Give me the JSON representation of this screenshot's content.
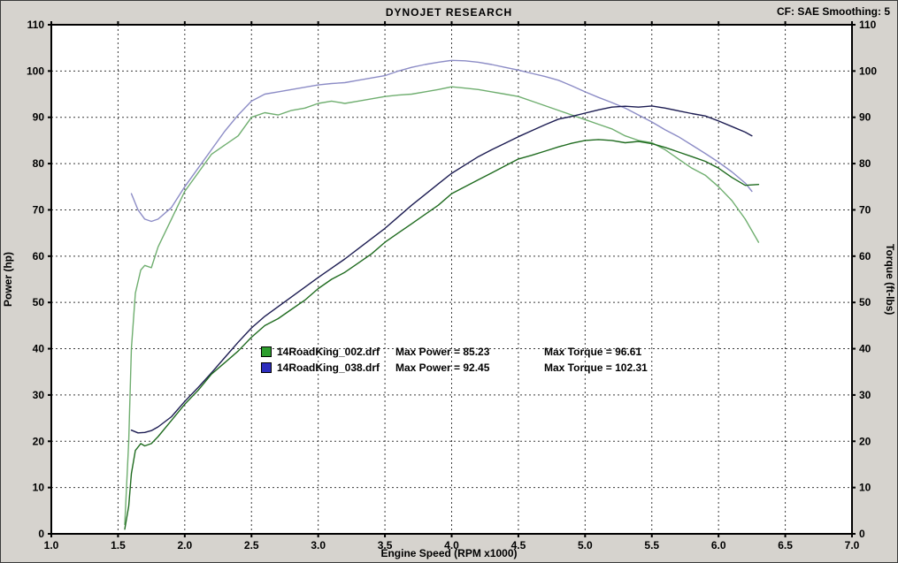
{
  "header": {
    "title": "DYNOJET RESEARCH",
    "settings": "CF: SAE  Smoothing: 5"
  },
  "chart_data": {
    "type": "line",
    "title": "DYNOJET RESEARCH",
    "xlabel": "Engine Speed (RPM x1000)",
    "ylabel_left": "Power (hp)",
    "ylabel_right": "Torque (ft-lbs)",
    "xlim": [
      1.0,
      7.0
    ],
    "ylim": [
      0,
      110
    ],
    "x_ticks": [
      1.0,
      1.5,
      2.0,
      2.5,
      3.0,
      3.5,
      4.0,
      4.5,
      5.0,
      5.5,
      6.0,
      6.5,
      7.0
    ],
    "y_ticks": [
      0,
      10,
      20,
      30,
      40,
      50,
      60,
      70,
      80,
      90,
      100,
      110
    ],
    "grid": "dashed",
    "grid_color": "#3a3a3a",
    "plot_background": "#ffffff",
    "series": [
      {
        "name": "14RoadKing_038.drf Torque",
        "color": "#8c8cc6",
        "axis": "torque",
        "x": [
          1.6,
          1.65,
          1.7,
          1.75,
          1.8,
          1.9,
          2.0,
          2.1,
          2.2,
          2.3,
          2.4,
          2.5,
          2.6,
          2.7,
          2.8,
          2.9,
          3.0,
          3.1,
          3.2,
          3.3,
          3.4,
          3.5,
          3.6,
          3.7,
          3.8,
          3.9,
          4.0,
          4.1,
          4.2,
          4.3,
          4.4,
          4.5,
          4.6,
          4.7,
          4.8,
          4.9,
          5.0,
          5.1,
          5.2,
          5.3,
          5.4,
          5.5,
          5.6,
          5.7,
          5.8,
          5.9,
          6.0,
          6.1,
          6.2,
          6.25
        ],
        "y": [
          73.5,
          70,
          68,
          67.5,
          68,
          70.5,
          75,
          79,
          83,
          87,
          90.5,
          93.5,
          95,
          95.5,
          96,
          96.5,
          97,
          97.3,
          97.5,
          98,
          98.5,
          99,
          100,
          100.8,
          101.4,
          101.9,
          102.3,
          102.2,
          101.9,
          101.4,
          100.8,
          100.2,
          99.5,
          98.8,
          98,
          96.8,
          95.5,
          94.3,
          93.2,
          92,
          90.5,
          89,
          87.3,
          85.8,
          84,
          82.2,
          80.3,
          78.2,
          75.8,
          74
        ]
      },
      {
        "name": "14RoadKing_002.drf Torque",
        "color": "#6fae6f",
        "axis": "torque",
        "x": [
          1.55,
          1.58,
          1.6,
          1.63,
          1.67,
          1.7,
          1.75,
          1.8,
          1.9,
          2.0,
          2.1,
          2.2,
          2.3,
          2.4,
          2.5,
          2.6,
          2.7,
          2.8,
          2.9,
          3.0,
          3.1,
          3.2,
          3.3,
          3.4,
          3.5,
          3.6,
          3.7,
          3.8,
          3.9,
          4.0,
          4.1,
          4.2,
          4.3,
          4.4,
          4.5,
          4.6,
          4.7,
          4.8,
          4.9,
          5.0,
          5.1,
          5.2,
          5.3,
          5.4,
          5.5,
          5.6,
          5.7,
          5.8,
          5.9,
          6.0,
          6.1,
          6.2,
          6.3
        ],
        "y": [
          2,
          20,
          40,
          52,
          57,
          58,
          57.5,
          62,
          68,
          74,
          78,
          82,
          84,
          86,
          90,
          91,
          90.5,
          91.5,
          92,
          93,
          93.5,
          93,
          93.5,
          94,
          94.5,
          94.8,
          95,
          95.5,
          96,
          96.6,
          96.3,
          96,
          95.5,
          95,
          94.5,
          93.5,
          92.5,
          91.5,
          90.5,
          89.5,
          88.5,
          87.5,
          86,
          85,
          84.5,
          83,
          81,
          79,
          77.5,
          75,
          72,
          68,
          63
        ]
      },
      {
        "name": "14RoadKing_038.drf Power",
        "color": "#1c1c52",
        "axis": "power",
        "x": [
          1.6,
          1.65,
          1.7,
          1.75,
          1.8,
          1.9,
          2.0,
          2.1,
          2.2,
          2.3,
          2.4,
          2.5,
          2.6,
          2.7,
          2.8,
          2.9,
          3.0,
          3.1,
          3.2,
          3.3,
          3.4,
          3.5,
          3.6,
          3.7,
          3.8,
          3.9,
          4.0,
          4.1,
          4.2,
          4.3,
          4.4,
          4.5,
          4.6,
          4.7,
          4.8,
          4.9,
          5.0,
          5.1,
          5.2,
          5.3,
          5.4,
          5.5,
          5.6,
          5.7,
          5.8,
          5.9,
          6.0,
          6.1,
          6.2,
          6.25
        ],
        "y": [
          22.4,
          21.8,
          21.9,
          22.3,
          23.1,
          25.3,
          28.6,
          31.6,
          34.8,
          38.1,
          41.4,
          44.5,
          47,
          49.1,
          51.2,
          53.3,
          55.4,
          57.4,
          59.4,
          61.6,
          63.8,
          66,
          68.5,
          71,
          73.3,
          75.6,
          77.9,
          79.7,
          81.5,
          83,
          84.4,
          85.8,
          87.1,
          88.4,
          89.6,
          90.2,
          90.9,
          91.6,
          92.2,
          92.4,
          92.2,
          92.45,
          92,
          91.4,
          90.8,
          90.3,
          89.2,
          88,
          86.8,
          86
        ]
      },
      {
        "name": "14RoadKing_002.drf Power",
        "color": "#1f6b1f",
        "axis": "power",
        "x": [
          1.55,
          1.58,
          1.6,
          1.63,
          1.67,
          1.7,
          1.75,
          1.8,
          1.9,
          2.0,
          2.1,
          2.2,
          2.3,
          2.4,
          2.5,
          2.6,
          2.7,
          2.8,
          2.9,
          3.0,
          3.1,
          3.2,
          3.3,
          3.4,
          3.5,
          3.6,
          3.7,
          3.8,
          3.9,
          4.0,
          4.1,
          4.2,
          4.3,
          4.4,
          4.5,
          4.6,
          4.7,
          4.8,
          4.9,
          5.0,
          5.1,
          5.2,
          5.3,
          5.4,
          5.5,
          5.6,
          5.7,
          5.8,
          5.9,
          6.0,
          6.1,
          6.2,
          6.3
        ],
        "y": [
          1,
          6,
          13,
          18,
          19.5,
          19,
          19.5,
          21,
          24.5,
          28,
          31,
          34.5,
          37,
          39.5,
          42.5,
          45,
          46.5,
          48.5,
          50.5,
          53,
          55,
          56.5,
          58.5,
          60.5,
          63,
          65,
          67,
          69,
          71,
          73.5,
          75,
          76.5,
          78,
          79.5,
          81,
          81.8,
          82.7,
          83.6,
          84.4,
          85,
          85.2,
          85,
          84.5,
          84.8,
          84.3,
          83.5,
          82.5,
          81.5,
          80.5,
          79,
          77,
          75.3,
          75.5
        ]
      }
    ],
    "legend": {
      "position": "inside-center-left",
      "rows": [
        {
          "swatch_color": "#2d9e2d",
          "file": "14RoadKing_002.drf",
          "max_power": "Max Power = 85.23",
          "max_torque": "Max Torque = 96.61"
        },
        {
          "swatch_color": "#2d2dbe",
          "file": "14RoadKing_038.drf",
          "max_power": "Max Power = 92.45",
          "max_torque": "Max Torque = 102.31"
        }
      ]
    }
  }
}
